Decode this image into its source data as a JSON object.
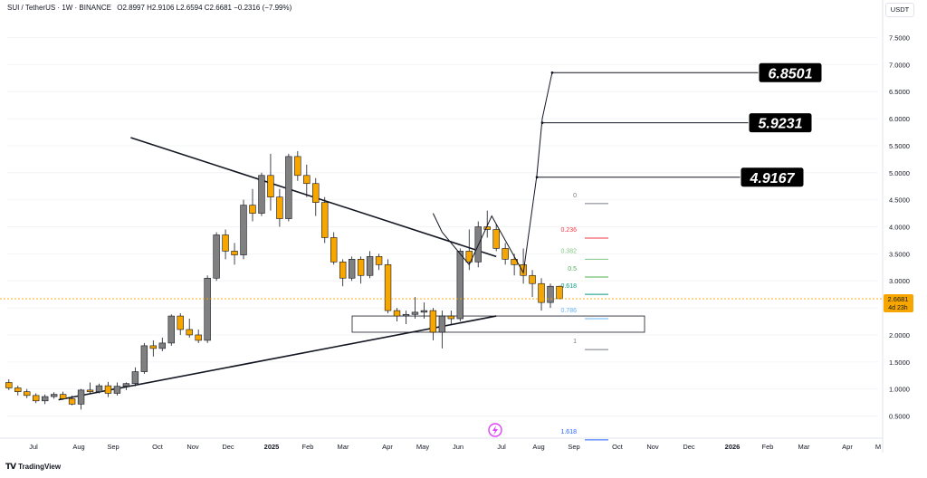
{
  "header": {
    "symbol": "SUI / TetherUS · 1W · BINANCE",
    "ohlc": "O2.8997 H2.9106 L2.6594 C2.6681 −0.2316 (−7.99%)"
  },
  "unit_label": "USDT",
  "current_price": {
    "value": "2.6681",
    "countdown": "4d 23h",
    "color": "#f7a600"
  },
  "brand": {
    "name": "TradingView"
  },
  "colors": {
    "up": "#808080",
    "down": "#f7a600",
    "line": "#131722"
  },
  "targets": [
    {
      "label": "6.8501",
      "price": 6.8501
    },
    {
      "label": "5.9231",
      "price": 5.9231
    },
    {
      "label": "4.9167",
      "price": 4.9167
    }
  ],
  "fib_levels": [
    {
      "label": "0",
      "price": 4.43,
      "color": "#787b86"
    },
    {
      "label": "0.236",
      "price": 3.79,
      "color": "#f23645"
    },
    {
      "label": "0.382",
      "price": 3.4,
      "color": "#81c784"
    },
    {
      "label": "0.5",
      "price": 3.07,
      "color": "#4caf50"
    },
    {
      "label": "0.618",
      "price": 2.75,
      "color": "#089981"
    },
    {
      "label": "0.786",
      "price": 2.3,
      "color": "#64b5f6"
    },
    {
      "label": "1",
      "price": 1.73,
      "color": "#787b86"
    },
    {
      "label": "1.618",
      "price": 0.06,
      "color": "#2962ff"
    }
  ],
  "chart_data": {
    "type": "candlestick",
    "title": "SUI / TetherUS · 1W · BINANCE",
    "ylabel": "USDT",
    "ylim": [
      0,
      8
    ],
    "y_ticks": [
      "0.5000",
      "1.0000",
      "1.5000",
      "2.0000",
      "2.5000",
      "3.0000",
      "3.5000",
      "4.0000",
      "4.5000",
      "5.0000",
      "5.5000",
      "6.0000",
      "6.5000",
      "7.0000",
      "7.5000"
    ],
    "x_ticks": [
      "Jul",
      "Aug",
      "Sep",
      "Oct",
      "Nov",
      "Dec",
      "2025",
      "Feb",
      "Mar",
      "Apr",
      "May",
      "Jun",
      "Jul",
      "Aug",
      "Sep",
      "Oct",
      "Nov",
      "Dec",
      "2026",
      "Feb",
      "Mar",
      "Apr",
      "M"
    ],
    "candles": [
      [
        1.12,
        1.18,
        0.98,
        1.02
      ],
      [
        1.02,
        1.06,
        0.88,
        0.95
      ],
      [
        0.95,
        1.0,
        0.83,
        0.88
      ],
      [
        0.88,
        0.92,
        0.74,
        0.78
      ],
      [
        0.78,
        0.9,
        0.72,
        0.86
      ],
      [
        0.86,
        0.94,
        0.82,
        0.9
      ],
      [
        0.9,
        0.95,
        0.8,
        0.82
      ],
      [
        0.82,
        0.88,
        0.7,
        0.72
      ],
      [
        0.72,
        1.0,
        0.62,
        0.98
      ],
      [
        0.98,
        1.12,
        0.92,
        0.95
      ],
      [
        0.95,
        1.1,
        0.92,
        1.06
      ],
      [
        1.06,
        1.13,
        0.85,
        0.92
      ],
      [
        0.92,
        1.12,
        0.88,
        1.05
      ],
      [
        1.05,
        1.12,
        0.98,
        1.1
      ],
      [
        1.1,
        1.4,
        1.05,
        1.32
      ],
      [
        1.32,
        1.85,
        1.28,
        1.8
      ],
      [
        1.8,
        1.9,
        1.6,
        1.75
      ],
      [
        1.75,
        1.95,
        1.7,
        1.85
      ],
      [
        1.85,
        2.38,
        1.8,
        2.35
      ],
      [
        2.35,
        2.4,
        2.0,
        2.1
      ],
      [
        2.1,
        2.3,
        1.95,
        2.0
      ],
      [
        2.0,
        2.1,
        1.85,
        1.9
      ],
      [
        1.9,
        3.1,
        1.85,
        3.05
      ],
      [
        3.05,
        3.9,
        3.0,
        3.85
      ],
      [
        3.85,
        3.95,
        3.4,
        3.55
      ],
      [
        3.55,
        3.7,
        3.3,
        3.48
      ],
      [
        3.48,
        4.5,
        3.4,
        4.4
      ],
      [
        4.4,
        4.7,
        4.1,
        4.25
      ],
      [
        4.25,
        5.0,
        4.2,
        4.95
      ],
      [
        4.95,
        5.35,
        4.3,
        4.55
      ],
      [
        4.55,
        4.7,
        4.0,
        4.15
      ],
      [
        4.15,
        5.35,
        4.1,
        5.3
      ],
      [
        5.3,
        5.4,
        4.85,
        4.95
      ],
      [
        4.95,
        5.15,
        4.55,
        4.8
      ],
      [
        4.8,
        4.9,
        4.2,
        4.45
      ],
      [
        4.45,
        4.55,
        3.7,
        3.8
      ],
      [
        3.8,
        3.9,
        3.3,
        3.35
      ],
      [
        3.35,
        3.4,
        2.9,
        3.05
      ],
      [
        3.05,
        3.45,
        3.0,
        3.4
      ],
      [
        3.4,
        3.45,
        2.95,
        3.1
      ],
      [
        3.1,
        3.55,
        3.05,
        3.45
      ],
      [
        3.45,
        3.5,
        3.2,
        3.3
      ],
      [
        3.3,
        3.4,
        2.4,
        2.45
      ],
      [
        2.45,
        2.5,
        2.25,
        2.35
      ],
      [
        2.35,
        2.45,
        2.2,
        2.38
      ],
      [
        2.38,
        2.7,
        2.3,
        2.42
      ],
      [
        2.42,
        2.6,
        2.3,
        2.45
      ],
      [
        2.45,
        2.5,
        1.9,
        2.05
      ],
      [
        2.05,
        2.45,
        1.75,
        2.35
      ],
      [
        2.35,
        2.45,
        2.2,
        2.3
      ],
      [
        2.3,
        3.6,
        2.25,
        3.55
      ],
      [
        3.55,
        3.95,
        3.2,
        3.35
      ],
      [
        3.35,
        4.1,
        3.25,
        4.0
      ],
      [
        4.0,
        4.3,
        3.8,
        3.95
      ],
      [
        3.95,
        4.05,
        3.55,
        3.6
      ],
      [
        3.6,
        3.7,
        3.3,
        3.4
      ],
      [
        3.4,
        3.5,
        3.1,
        3.3
      ],
      [
        3.3,
        3.6,
        2.95,
        3.1
      ],
      [
        3.1,
        3.2,
        2.7,
        2.95
      ],
      [
        2.95,
        3.05,
        2.45,
        2.6
      ],
      [
        2.6,
        2.95,
        2.5,
        2.9
      ],
      [
        2.9,
        2.91,
        2.66,
        2.67
      ]
    ],
    "lines": [
      {
        "name": "resistance",
        "points": [
          [
            13.5,
            5.65
          ],
          [
            54,
            3.45
          ]
        ]
      },
      {
        "name": "support",
        "points": [
          [
            5.5,
            0.8
          ],
          [
            54,
            2.35
          ]
        ]
      }
    ],
    "support_zone": [
      2.05,
      2.35
    ],
    "projection_path": [
      [
        47,
        4.25
      ],
      [
        48,
        3.9
      ],
      [
        51,
        3.3
      ],
      [
        53.5,
        4.2
      ],
      [
        57,
        3.15
      ],
      [
        58.5,
        4.95
      ],
      [
        59.1,
        6.0
      ],
      [
        60.2,
        6.86
      ]
    ],
    "current_price": 2.6681
  }
}
